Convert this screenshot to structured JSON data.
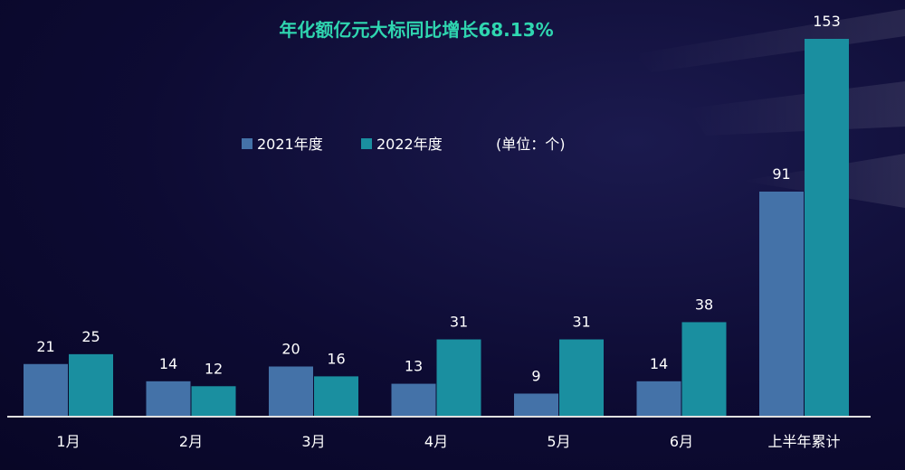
{
  "chart_data": {
    "type": "bar",
    "title": "年化额亿元大标同比增长68.13%",
    "unit_note": "(单位：个)",
    "categories": [
      "1月",
      "2月",
      "3月",
      "4月",
      "5月",
      "6月",
      "上半年累计"
    ],
    "series": [
      {
        "name": "2021年度",
        "color": "#4472a8",
        "values": [
          21,
          14,
          20,
          13,
          9,
          14,
          91
        ]
      },
      {
        "name": "2022年度",
        "color": "#1a8fa0",
        "values": [
          25,
          12,
          16,
          31,
          31,
          38,
          153
        ]
      }
    ],
    "ylim": [
      0,
      153
    ],
    "grid": false,
    "legend": "top-center"
  }
}
